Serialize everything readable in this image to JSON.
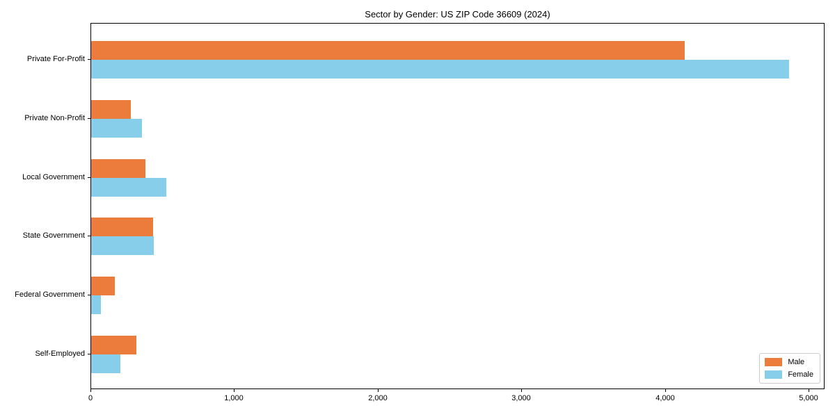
{
  "chart_data": {
    "type": "bar",
    "orientation": "horizontal",
    "title": "Sector by Gender: US ZIP Code 36609 (2024)",
    "categories": [
      "Private For-Profit",
      "Private Non-Profit",
      "Local Government",
      "State Government",
      "Federal Government",
      "Self-Employed"
    ],
    "series": [
      {
        "name": "Male",
        "color": "#EB7C3B",
        "values": [
          4130,
          275,
          380,
          430,
          165,
          315
        ]
      },
      {
        "name": "Female",
        "color": "#87CEEB",
        "values": [
          4860,
          355,
          525,
          435,
          70,
          205
        ]
      }
    ],
    "xlabel": "",
    "ylabel": "",
    "x_tick_labels": [
      "0",
      "1,000",
      "2,000",
      "3,000",
      "4,000",
      "5,000"
    ],
    "x_tick_values": [
      0,
      1000,
      2000,
      3000,
      4000,
      5000
    ],
    "xlim": [
      0,
      5100
    ],
    "grid": false,
    "legend_position": "lower right",
    "axis_color": "#000000",
    "background_color": "#ffffff"
  }
}
